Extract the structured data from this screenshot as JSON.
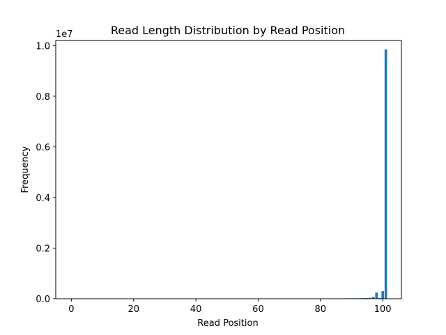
{
  "chart_data": {
    "type": "bar",
    "title": "Read Length Distribution by Read Position",
    "xlabel": "Read Position",
    "ylabel": "Frequency",
    "y_scale_note": "1e7",
    "xlim": [
      -5,
      106
    ],
    "ylim": [
      0,
      10200000
    ],
    "x_ticks": [
      0,
      20,
      40,
      60,
      80,
      100
    ],
    "x_tick_labels": [
      "0",
      "20",
      "40",
      "60",
      "80",
      "100"
    ],
    "y_ticks": [
      0,
      2000000,
      4000000,
      6000000,
      8000000,
      10000000
    ],
    "y_tick_labels": [
      "0.0",
      "0.2",
      "0.4",
      "0.6",
      "0.8",
      "1.0"
    ],
    "grid": false,
    "bar_color": "#1f77b4",
    "x": [
      81,
      82,
      83,
      84,
      85,
      86,
      87,
      88,
      89,
      90,
      91,
      92,
      93,
      94,
      95,
      96,
      97,
      98,
      99,
      100,
      101
    ],
    "values": [
      15000,
      12000,
      12000,
      13000,
      13000,
      14000,
      14000,
      15000,
      16000,
      17000,
      18000,
      20000,
      22000,
      25000,
      30000,
      40000,
      70000,
      240000,
      30000,
      300000,
      9850000
    ]
  }
}
